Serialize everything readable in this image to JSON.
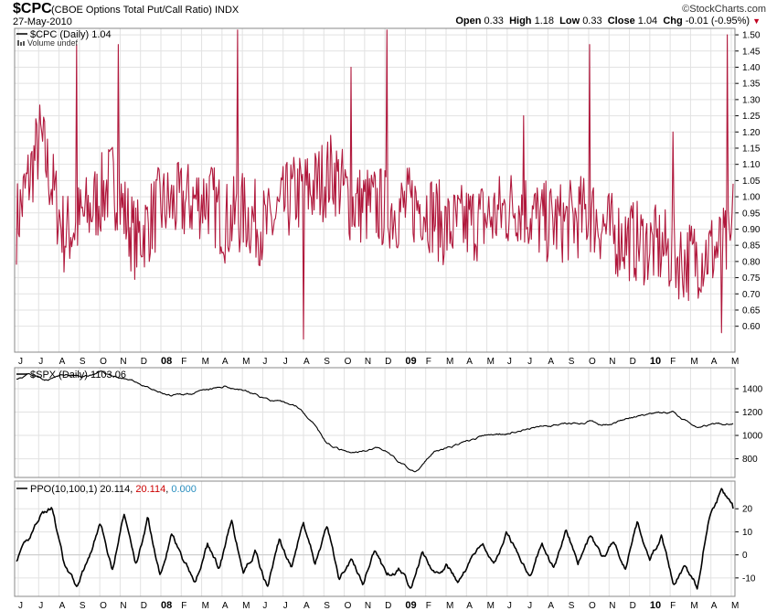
{
  "header": {
    "symbol": "$CPC",
    "name": "(CBOE Options Total Put/Call Ratio)",
    "exchange": "INDX",
    "date": "27-May-2010",
    "logo": "©StockCharts.com",
    "open_label": "Open",
    "open": "0.33",
    "high_label": "High",
    "high": "1.18",
    "low_label": "Low",
    "low": "0.33",
    "close_label": "Close",
    "close": "1.04",
    "chg_label": "Chg",
    "chg": "-0.01 (-0.95%)"
  },
  "colors": {
    "cpc": "#b0183c",
    "frame": "#888888",
    "grid": "#e2e2e2",
    "ppo_signal": "#cc0000",
    "ppo_hist": "#2a8fc0"
  },
  "months": [
    "J",
    "J",
    "A",
    "S",
    "O",
    "N",
    "D",
    "08",
    "F",
    "M",
    "A",
    "M",
    "J",
    "J",
    "A",
    "S",
    "O",
    "N",
    "D",
    "09",
    "F",
    "M",
    "A",
    "M",
    "J",
    "J",
    "A",
    "S",
    "O",
    "N",
    "D",
    "10",
    "F",
    "M",
    "A",
    "M"
  ],
  "chart_data": [
    {
      "type": "line",
      "title": "$CPC (Daily) 1.04",
      "legend_extra": "Volume undef",
      "series": [
        {
          "name": "$CPC",
          "last": 1.04
        }
      ],
      "ylim": [
        0.52,
        1.52
      ],
      "yticks": [
        "1.50",
        "1.45",
        "1.40",
        "1.35",
        "1.30",
        "1.25",
        "1.20",
        "1.15",
        "1.10",
        "1.05",
        "1.00",
        "0.95",
        "0.90",
        "0.85",
        "0.80",
        "0.75",
        "0.70",
        "0.65",
        "0.60"
      ],
      "anchors": [
        [
          0,
          0.92
        ],
        [
          4,
          1.18
        ],
        [
          8,
          0.88
        ],
        [
          12,
          0.95
        ],
        [
          16,
          1.05
        ],
        [
          20,
          0.86
        ],
        [
          24,
          0.97
        ],
        [
          28,
          0.98
        ],
        [
          32,
          1.0
        ],
        [
          35,
          0.92
        ],
        [
          38,
          0.95
        ],
        [
          42,
          0.9
        ],
        [
          46,
          1.0
        ],
        [
          50,
          1.03
        ],
        [
          53,
          1.08
        ],
        [
          56,
          0.98
        ],
        [
          60,
          0.97
        ],
        [
          64,
          0.96
        ],
        [
          68,
          0.98
        ],
        [
          72,
          0.9
        ],
        [
          76,
          0.92
        ],
        [
          80,
          0.94
        ],
        [
          84,
          0.98
        ],
        [
          88,
          0.92
        ],
        [
          92,
          0.92
        ],
        [
          96,
          0.95
        ],
        [
          100,
          0.88
        ],
        [
          104,
          0.86
        ],
        [
          108,
          0.84
        ],
        [
          112,
          0.8
        ],
        [
          116,
          0.83
        ],
        [
          120,
          0.85
        ]
      ],
      "spikes": [
        [
          10,
          1.47
        ],
        [
          17,
          1.47
        ],
        [
          37,
          1.52
        ],
        [
          48,
          0.56
        ],
        [
          56,
          1.4
        ],
        [
          62,
          1.52
        ],
        [
          85,
          1.25
        ],
        [
          96,
          1.47
        ],
        [
          110,
          1.2
        ],
        [
          118,
          0.58
        ],
        [
          119,
          1.5
        ]
      ],
      "noise": 0.13,
      "last": 1.04
    },
    {
      "type": "line",
      "title": "$SPX (Daily) 1103.06",
      "series": [
        {
          "name": "$SPX",
          "last": 1103.06
        }
      ],
      "ylim": [
        640,
        1580
      ],
      "yticks": [
        "1400",
        "1200",
        "1000",
        "800"
      ],
      "anchors": [
        [
          0,
          1490
        ],
        [
          2,
          1530
        ],
        [
          5,
          1480
        ],
        [
          8,
          1520
        ],
        [
          11,
          1500
        ],
        [
          14,
          1540
        ],
        [
          17,
          1500
        ],
        [
          20,
          1460
        ],
        [
          23,
          1380
        ],
        [
          26,
          1330
        ],
        [
          29,
          1360
        ],
        [
          32,
          1380
        ],
        [
          35,
          1420
        ],
        [
          38,
          1390
        ],
        [
          41,
          1330
        ],
        [
          44,
          1280
        ],
        [
          47,
          1250
        ],
        [
          50,
          1100
        ],
        [
          52,
          930
        ],
        [
          54,
          880
        ],
        [
          56,
          840
        ],
        [
          58,
          860
        ],
        [
          60,
          900
        ],
        [
          62,
          870
        ],
        [
          64,
          780
        ],
        [
          66,
          700
        ],
        [
          67,
          690
        ],
        [
          70,
          860
        ],
        [
          74,
          920
        ],
        [
          78,
          990
        ],
        [
          82,
          1020
        ],
        [
          86,
          1060
        ],
        [
          90,
          1090
        ],
        [
          93,
          1100
        ],
        [
          96,
          1120
        ],
        [
          98,
          1080
        ],
        [
          101,
          1130
        ],
        [
          104,
          1160
        ],
        [
          107,
          1180
        ],
        [
          110,
          1200
        ],
        [
          111,
          1150
        ],
        [
          114,
          1080
        ],
        [
          117,
          1100
        ],
        [
          120,
          1103
        ]
      ],
      "noise": 12,
      "last": 1103.06
    },
    {
      "type": "line",
      "title": "PPO(10,100,1)",
      "values_text": {
        "ppo": "20.114",
        "signal": "20.114",
        "hist": "0.000"
      },
      "series": [
        {
          "name": "PPO",
          "last": 20.114
        },
        {
          "name": "Signal",
          "last": 20.114
        },
        {
          "name": "Histogram",
          "last": 0.0
        }
      ],
      "ylim": [
        -18,
        32
      ],
      "yticks": [
        "20",
        "10",
        "0",
        "-10"
      ],
      "anchors": [
        [
          0,
          -2
        ],
        [
          2,
          6
        ],
        [
          4,
          18
        ],
        [
          6,
          20
        ],
        [
          8,
          -5
        ],
        [
          10,
          -14
        ],
        [
          12,
          -2
        ],
        [
          14,
          14
        ],
        [
          16,
          -6
        ],
        [
          18,
          18
        ],
        [
          20,
          -4
        ],
        [
          22,
          16
        ],
        [
          24,
          -8
        ],
        [
          26,
          10
        ],
        [
          28,
          -4
        ],
        [
          30,
          -12
        ],
        [
          32,
          4
        ],
        [
          34,
          -6
        ],
        [
          36,
          14
        ],
        [
          38,
          -8
        ],
        [
          40,
          2
        ],
        [
          42,
          -14
        ],
        [
          44,
          6
        ],
        [
          46,
          -6
        ],
        [
          48,
          14
        ],
        [
          50,
          -4
        ],
        [
          52,
          12
        ],
        [
          54,
          -10
        ],
        [
          56,
          -2
        ],
        [
          58,
          -12
        ],
        [
          60,
          2
        ],
        [
          62,
          -10
        ],
        [
          64,
          -6
        ],
        [
          66,
          -14
        ],
        [
          68,
          2
        ],
        [
          70,
          -8
        ],
        [
          72,
          -4
        ],
        [
          74,
          -12
        ],
        [
          76,
          -2
        ],
        [
          78,
          6
        ],
        [
          80,
          -4
        ],
        [
          82,
          10
        ],
        [
          84,
          0
        ],
        [
          86,
          -8
        ],
        [
          88,
          6
        ],
        [
          90,
          -6
        ],
        [
          92,
          10
        ],
        [
          94,
          -4
        ],
        [
          96,
          8
        ],
        [
          98,
          -2
        ],
        [
          100,
          6
        ],
        [
          102,
          -6
        ],
        [
          104,
          14
        ],
        [
          106,
          -2
        ],
        [
          108,
          8
        ],
        [
          110,
          -12
        ],
        [
          112,
          -4
        ],
        [
          114,
          -14
        ],
        [
          116,
          18
        ],
        [
          118,
          28
        ],
        [
          119,
          24
        ],
        [
          120,
          20
        ]
      ],
      "noise": 1.6,
      "last": 20.114
    }
  ]
}
